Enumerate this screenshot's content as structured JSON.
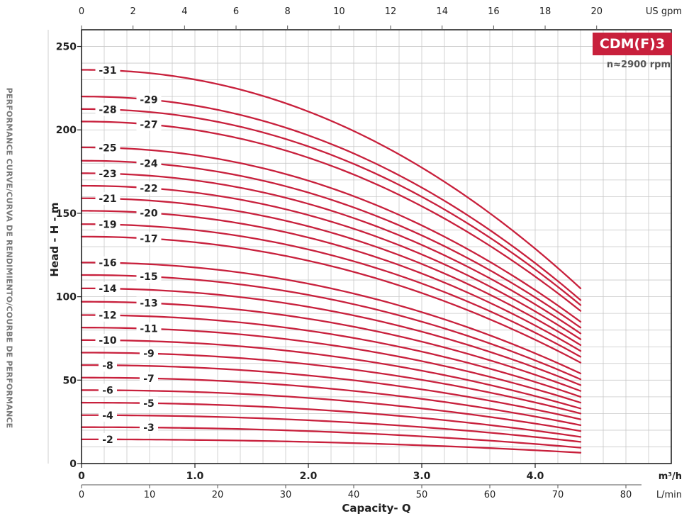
{
  "side_title": "PERFORMANCE CURVE/CURVA DE RENDIMIENTO/COURBE DE PERFORMANCE",
  "badge": "CDM(F)3",
  "rpm": "n≈2900 rpm",
  "colors": {
    "curve": "#c8203c",
    "grid": "#c8c8c8",
    "text": "#222222"
  },
  "chart_data": {
    "type": "line",
    "ylabel": "Head - H - m",
    "xlabel": "Capacity- Q",
    "ylim": [
      0,
      260
    ],
    "xlim_m3h": [
      0,
      5.2
    ],
    "x_ticks_m3h": [
      "0",
      "1.0",
      "2.0",
      "3.0",
      "4.0"
    ],
    "x_unit_m3h": "m³/h",
    "x_ticks_lmin": [
      "0",
      "10",
      "20",
      "30",
      "40",
      "50",
      "60",
      "70",
      "80"
    ],
    "x_unit_lmin": "L/min",
    "x_ticks_usgpm": [
      "0",
      "2",
      "4",
      "6",
      "8",
      "10",
      "12",
      "14",
      "16",
      "18",
      "20"
    ],
    "x_unit_usgpm": "US gpm",
    "y_ticks": [
      "0",
      "50",
      "100",
      "150",
      "200",
      "250"
    ],
    "curve_end_m3h": 4.4,
    "series": [
      {
        "name": "-2",
        "shutoff_head": 14.5,
        "end_head": 6.5
      },
      {
        "name": "-3",
        "shutoff_head": 21.8,
        "end_head": 9.5
      },
      {
        "name": "-4",
        "shutoff_head": 29.0,
        "end_head": 13
      },
      {
        "name": "-5",
        "shutoff_head": 36.5,
        "end_head": 16
      },
      {
        "name": "-6",
        "shutoff_head": 44.0,
        "end_head": 19.5
      },
      {
        "name": "-7",
        "shutoff_head": 51.5,
        "end_head": 23
      },
      {
        "name": "-8",
        "shutoff_head": 59.0,
        "end_head": 26.5
      },
      {
        "name": "-9",
        "shutoff_head": 66.5,
        "end_head": 30
      },
      {
        "name": "-10",
        "shutoff_head": 74.0,
        "end_head": 33
      },
      {
        "name": "-11",
        "shutoff_head": 81.5,
        "end_head": 36.5
      },
      {
        "name": "-12",
        "shutoff_head": 89.0,
        "end_head": 40
      },
      {
        "name": "-13",
        "shutoff_head": 97.0,
        "end_head": 43.5
      },
      {
        "name": "-14",
        "shutoff_head": 105.0,
        "end_head": 47
      },
      {
        "name": "-15",
        "shutoff_head": 113.0,
        "end_head": 50.5
      },
      {
        "name": "-16",
        "shutoff_head": 120.5,
        "end_head": 54
      },
      {
        "name": "-17",
        "shutoff_head": 136.0,
        "end_head": 60.5
      },
      {
        "name": "-19",
        "shutoff_head": 143.5,
        "end_head": 64
      },
      {
        "name": "-20",
        "shutoff_head": 151.5,
        "end_head": 67.5
      },
      {
        "name": "-21",
        "shutoff_head": 159.0,
        "end_head": 71
      },
      {
        "name": "-22",
        "shutoff_head": 166.5,
        "end_head": 74.5
      },
      {
        "name": "-23",
        "shutoff_head": 174.0,
        "end_head": 78
      },
      {
        "name": "-24",
        "shutoff_head": 181.5,
        "end_head": 81.5
      },
      {
        "name": "-25",
        "shutoff_head": 189.5,
        "end_head": 85
      },
      {
        "name": "-27",
        "shutoff_head": 205.0,
        "end_head": 91.5
      },
      {
        "name": "-28",
        "shutoff_head": 212.5,
        "end_head": 95
      },
      {
        "name": "-29",
        "shutoff_head": 220.0,
        "end_head": 98
      },
      {
        "name": "-31",
        "shutoff_head": 236.0,
        "end_head": 105
      }
    ]
  }
}
